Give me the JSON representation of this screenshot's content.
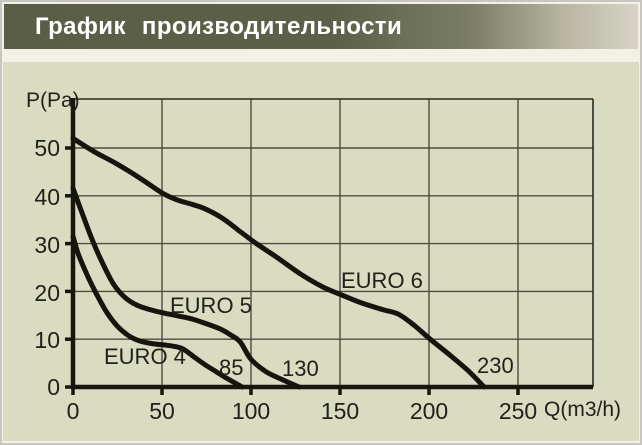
{
  "header": {
    "title": "График  производительности"
  },
  "colors": {
    "header_left": "#5b5e47",
    "header_right": "#d7d4c5",
    "page_bg": "#f2f0e7",
    "panel_bg": "#dadcc1",
    "grid": "#4c4c42",
    "frame": "#2a2a22",
    "axis": "#17170f",
    "curve": "#15150e",
    "text": "#21211a"
  },
  "chart_data": {
    "type": "line",
    "title": "График производительности",
    "xlabel": "Q(m3/h)",
    "ylabel": "P(Pa)",
    "xlim": [
      0,
      292
    ],
    "ylim": [
      0,
      60.5
    ],
    "xticks": [
      0,
      50,
      100,
      150,
      200,
      250
    ],
    "yticks": [
      0,
      10,
      20,
      30,
      40,
      50
    ],
    "grid": true,
    "legend_position": "inline-labels",
    "series": [
      {
        "name": "EURO 4",
        "end_label": "85",
        "points": [
          [
            0,
            31.5
          ],
          [
            3,
            27.8
          ],
          [
            8,
            23.4
          ],
          [
            13,
            19.6
          ],
          [
            19,
            15.6
          ],
          [
            25,
            12.7
          ],
          [
            31,
            10.8
          ],
          [
            37,
            9.7
          ],
          [
            44,
            9.1
          ],
          [
            51,
            8.8
          ],
          [
            57,
            8.5
          ],
          [
            62,
            7.9
          ],
          [
            68,
            6.3
          ],
          [
            74,
            4.7
          ],
          [
            80,
            3.3
          ],
          [
            87,
            1.7
          ],
          [
            95,
            0
          ]
        ]
      },
      {
        "name": "EURO 5",
        "end_label": "130",
        "points": [
          [
            0,
            41.6
          ],
          [
            5,
            36.5
          ],
          [
            11,
            30.6
          ],
          [
            17,
            25.6
          ],
          [
            23,
            21.4
          ],
          [
            29,
            18.8
          ],
          [
            36,
            17.1
          ],
          [
            44,
            16.1
          ],
          [
            52,
            15.4
          ],
          [
            60,
            14.8
          ],
          [
            68,
            14.1
          ],
          [
            76,
            13.1
          ],
          [
            83,
            12.1
          ],
          [
            89,
            10.8
          ],
          [
            94,
            9.4
          ],
          [
            100,
            5.8
          ],
          [
            108,
            3.3
          ],
          [
            116,
            1.8
          ],
          [
            127,
            0
          ]
        ]
      },
      {
        "name": "EURO 6",
        "end_label": "230",
        "points": [
          [
            0,
            52
          ],
          [
            12,
            49.2
          ],
          [
            25,
            46.6
          ],
          [
            38,
            43.6
          ],
          [
            50,
            40.6
          ],
          [
            58,
            39.2
          ],
          [
            66,
            38.3
          ],
          [
            74,
            37.3
          ],
          [
            84,
            35.3
          ],
          [
            94,
            32.5
          ],
          [
            103,
            30
          ],
          [
            115,
            27
          ],
          [
            128,
            23.6
          ],
          [
            140,
            21
          ],
          [
            150,
            19.4
          ],
          [
            162,
            17.6
          ],
          [
            174,
            16.2
          ],
          [
            183,
            15.2
          ],
          [
            192,
            12.8
          ],
          [
            200,
            10.2
          ],
          [
            212,
            6.6
          ],
          [
            222,
            3.4
          ],
          [
            231,
            0
          ]
        ]
      }
    ]
  }
}
